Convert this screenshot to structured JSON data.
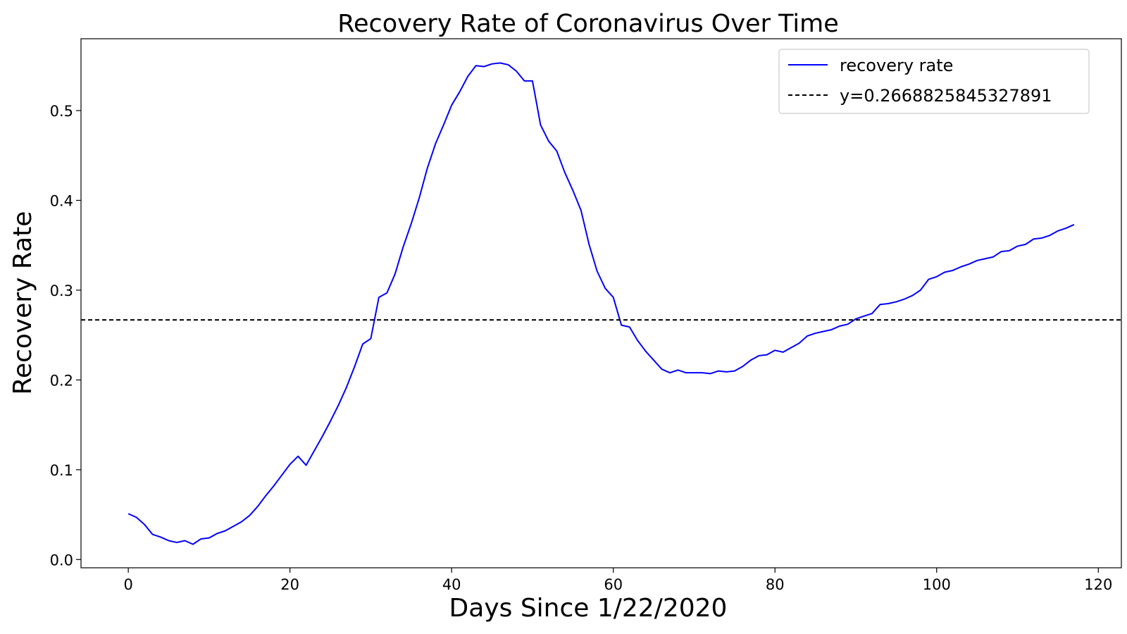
{
  "chart_data": {
    "type": "line",
    "title": "Recovery Rate of Coronavirus Over Time",
    "xlabel": "Days Since 1/22/2020",
    "ylabel": "Recovery Rate",
    "xlim": [
      -5.85,
      122.85
    ],
    "ylim": [
      -0.0092,
      0.58
    ],
    "xticks": [
      0,
      20,
      40,
      60,
      80,
      100,
      120
    ],
    "yticks": [
      0.0,
      0.1,
      0.2,
      0.3,
      0.4,
      0.5
    ],
    "xtick_labels": [
      "0",
      "20",
      "40",
      "60",
      "80",
      "100",
      "120"
    ],
    "ytick_labels": [
      "0.0",
      "0.1",
      "0.2",
      "0.3",
      "0.4",
      "0.5"
    ],
    "grid": false,
    "legend_position": "top-right",
    "series": [
      {
        "name": "recovery rate",
        "color": "#0000ff",
        "style": "solid",
        "x_start": 0,
        "x_step": 1,
        "values": [
          0.051,
          0.047,
          0.039,
          0.028,
          0.025,
          0.021,
          0.019,
          0.021,
          0.017,
          0.023,
          0.024,
          0.029,
          0.032,
          0.037,
          0.042,
          0.049,
          0.059,
          0.071,
          0.082,
          0.094,
          0.106,
          0.115,
          0.105,
          0.121,
          0.137,
          0.154,
          0.172,
          0.192,
          0.215,
          0.24,
          0.246,
          0.292,
          0.297,
          0.318,
          0.348,
          0.374,
          0.403,
          0.436,
          0.463,
          0.484,
          0.506,
          0.521,
          0.538,
          0.55,
          0.549,
          0.552,
          0.553,
          0.551,
          0.544,
          0.533,
          0.533,
          0.484,
          0.466,
          0.455,
          0.431,
          0.411,
          0.389,
          0.351,
          0.321,
          0.302,
          0.292,
          0.261,
          0.259,
          0.244,
          0.232,
          0.222,
          0.212,
          0.208,
          0.211,
          0.208,
          0.208,
          0.208,
          0.207,
          0.21,
          0.209,
          0.21,
          0.215,
          0.222,
          0.227,
          0.228,
          0.233,
          0.231,
          0.236,
          0.241,
          0.249,
          0.252,
          0.254,
          0.256,
          0.26,
          0.262,
          0.268,
          0.271,
          0.274,
          0.284,
          0.285,
          0.287,
          0.29,
          0.294,
          0.3,
          0.312,
          0.315,
          0.32,
          0.322,
          0.326,
          0.329,
          0.333,
          0.335,
          0.337,
          0.343,
          0.344,
          0.349,
          0.351,
          0.357,
          0.358,
          0.361,
          0.366,
          0.369,
          0.373
        ]
      },
      {
        "name": "y=0.2668825845327891",
        "color": "#000000",
        "style": "dashed",
        "type": "hline",
        "y": 0.2668825845327891
      }
    ]
  }
}
